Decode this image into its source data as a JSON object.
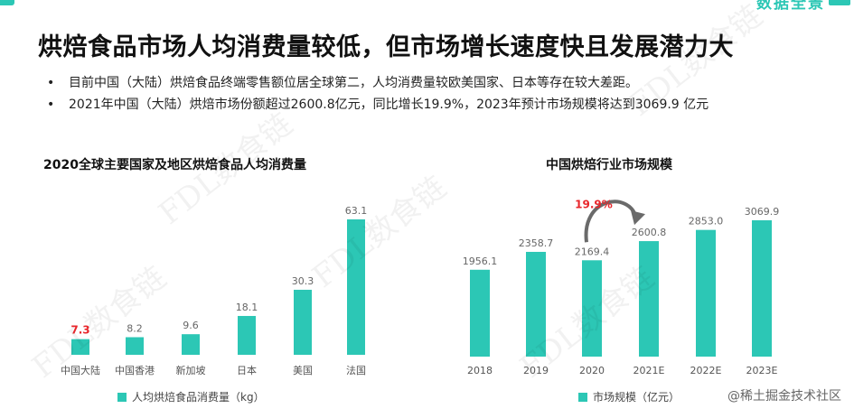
{
  "brand": {
    "text": "数据全景",
    "accent": "#2cc7b5"
  },
  "title": "烘焙食品市场人均消费量较低，但市场增长速度快且发展潜力大",
  "bullets": [
    "目前中国（大陆）烘焙食品终端零售额位居全球第二，人均消费量较欧美国家、日本等存在较大差距。",
    "2021年中国（大陆）烘焙市场份额超过2600.8亿元，同比增长19.9%，2023年预计市场规模将达到3069.9 亿元"
  ],
  "watermark": "FDL数食链",
  "footer_credit": "@稀土掘金技术社区",
  "chart_data": [
    {
      "type": "bar",
      "title": "2020全球主要国家及地区烘焙食品人均消费量",
      "categories": [
        "中国大陆",
        "中国香港",
        "新加坡",
        "日本",
        "美国",
        "法国"
      ],
      "series": [
        {
          "name": "人均烘焙食品消费量（kg）",
          "values": [
            7.3,
            8.2,
            9.6,
            18.1,
            30.3,
            63.1
          ]
        }
      ],
      "value_labels": [
        "7.3",
        "8.2",
        "9.6",
        "18.1",
        "30.3",
        "63.1"
      ],
      "highlight_index": 0,
      "highlight_color": "#e8262b",
      "bar_color": "#2cc7b5",
      "ylim": [
        0,
        63.1
      ],
      "grid": false,
      "legend_position": "bottom"
    },
    {
      "type": "bar",
      "title": "中国烘焙行业市场规模",
      "categories": [
        "2018",
        "2019",
        "2020",
        "2021E",
        "2022E",
        "2023E"
      ],
      "series": [
        {
          "name": "市场规模（亿元）",
          "values": [
            1956.1,
            2358.7,
            2169.4,
            2600.8,
            2853.0,
            3069.9
          ]
        }
      ],
      "value_labels": [
        "1956.1",
        "2358.7",
        "2169.4",
        "2600.8",
        "2853.0",
        "3069.9"
      ],
      "annotation": {
        "text": "19.9%",
        "from_index": 2,
        "to_index": 3,
        "color": "#e8262b"
      },
      "bar_color": "#2cc7b5",
      "ylim": [
        0,
        3069.9
      ],
      "grid": false,
      "legend_position": "bottom"
    }
  ]
}
